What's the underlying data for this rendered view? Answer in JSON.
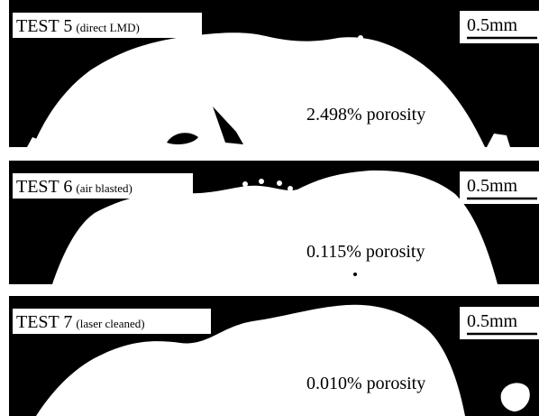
{
  "panels": [
    {
      "test": "TEST 5",
      "condition": "(direct LMD)",
      "scale": "0.5mm",
      "porosity": "2.498% porosity"
    },
    {
      "test": "TEST 6",
      "condition": "(air blasted)",
      "scale": "0.5mm",
      "porosity": "0.115% porosity"
    },
    {
      "test": "TEST 7",
      "condition": "(laser cleaned)",
      "scale": "0.5mm",
      "porosity": "0.010% porosity"
    }
  ]
}
